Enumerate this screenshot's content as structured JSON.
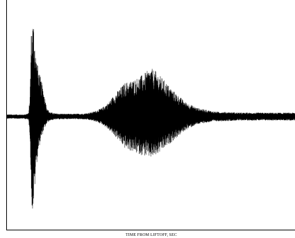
{
  "chart_data": {
    "type": "line",
    "title": "",
    "xlabel": "TIME FROM LIFTOFF, SEC",
    "ylabel": "",
    "grid": false,
    "legend": "none",
    "line_color": "#000000",
    "background_color": "#ffffff",
    "xlim": [
      0,
      100
    ],
    "ylim": [
      -1,
      1
    ],
    "x_ticks": [],
    "y_ticks": [],
    "series": [
      {
        "name": "",
        "sample_count": 1400,
        "envelope_positive": [
          {
            "x": 0,
            "y": 0.022
          },
          {
            "x": 6,
            "y": 0.022
          },
          {
            "x": 7.5,
            "y": 0.035
          },
          {
            "x": 8.0,
            "y": 0.22
          },
          {
            "x": 8.4,
            "y": 0.85
          },
          {
            "x": 8.8,
            "y": 1.0
          },
          {
            "x": 9.3,
            "y": 0.97
          },
          {
            "x": 10,
            "y": 0.66
          },
          {
            "x": 11,
            "y": 0.48
          },
          {
            "x": 12.5,
            "y": 0.3
          },
          {
            "x": 14,
            "y": 0.08
          },
          {
            "x": 15,
            "y": 0.045
          },
          {
            "x": 17,
            "y": 0.032
          },
          {
            "x": 22,
            "y": 0.028
          },
          {
            "x": 27,
            "y": 0.032
          },
          {
            "x": 30,
            "y": 0.05
          },
          {
            "x": 33,
            "y": 0.09
          },
          {
            "x": 35,
            "y": 0.14
          },
          {
            "x": 38,
            "y": 0.25
          },
          {
            "x": 41,
            "y": 0.35
          },
          {
            "x": 44,
            "y": 0.38
          },
          {
            "x": 47,
            "y": 0.43
          },
          {
            "x": 50,
            "y": 0.5
          },
          {
            "x": 52,
            "y": 0.46
          },
          {
            "x": 55,
            "y": 0.36
          },
          {
            "x": 58,
            "y": 0.26
          },
          {
            "x": 62,
            "y": 0.15
          },
          {
            "x": 66,
            "y": 0.09
          },
          {
            "x": 72,
            "y": 0.052
          },
          {
            "x": 82,
            "y": 0.04
          },
          {
            "x": 92,
            "y": 0.04
          },
          {
            "x": 100,
            "y": 0.04
          }
        ],
        "envelope_negative": [
          {
            "x": 0,
            "y": -0.022
          },
          {
            "x": 6,
            "y": -0.022
          },
          {
            "x": 7.5,
            "y": -0.035
          },
          {
            "x": 8.0,
            "y": -0.22
          },
          {
            "x": 8.4,
            "y": -0.82
          },
          {
            "x": 8.8,
            "y": -1.0
          },
          {
            "x": 9.3,
            "y": -0.9
          },
          {
            "x": 10,
            "y": -0.55
          },
          {
            "x": 11,
            "y": -0.33
          },
          {
            "x": 12.5,
            "y": -0.16
          },
          {
            "x": 14,
            "y": -0.06
          },
          {
            "x": 15,
            "y": -0.04
          },
          {
            "x": 17,
            "y": -0.03
          },
          {
            "x": 22,
            "y": -0.025
          },
          {
            "x": 27,
            "y": -0.03
          },
          {
            "x": 30,
            "y": -0.045
          },
          {
            "x": 33,
            "y": -0.08
          },
          {
            "x": 35,
            "y": -0.13
          },
          {
            "x": 38,
            "y": -0.22
          },
          {
            "x": 41,
            "y": -0.33
          },
          {
            "x": 44,
            "y": -0.37
          },
          {
            "x": 47,
            "y": -0.4
          },
          {
            "x": 50,
            "y": -0.43
          },
          {
            "x": 52,
            "y": -0.4
          },
          {
            "x": 55,
            "y": -0.32
          },
          {
            "x": 58,
            "y": -0.24
          },
          {
            "x": 62,
            "y": -0.14
          },
          {
            "x": 66,
            "y": -0.08
          },
          {
            "x": 72,
            "y": -0.05
          },
          {
            "x": 82,
            "y": -0.04
          },
          {
            "x": 92,
            "y": -0.04
          },
          {
            "x": 100,
            "y": -0.04
          }
        ]
      }
    ]
  }
}
